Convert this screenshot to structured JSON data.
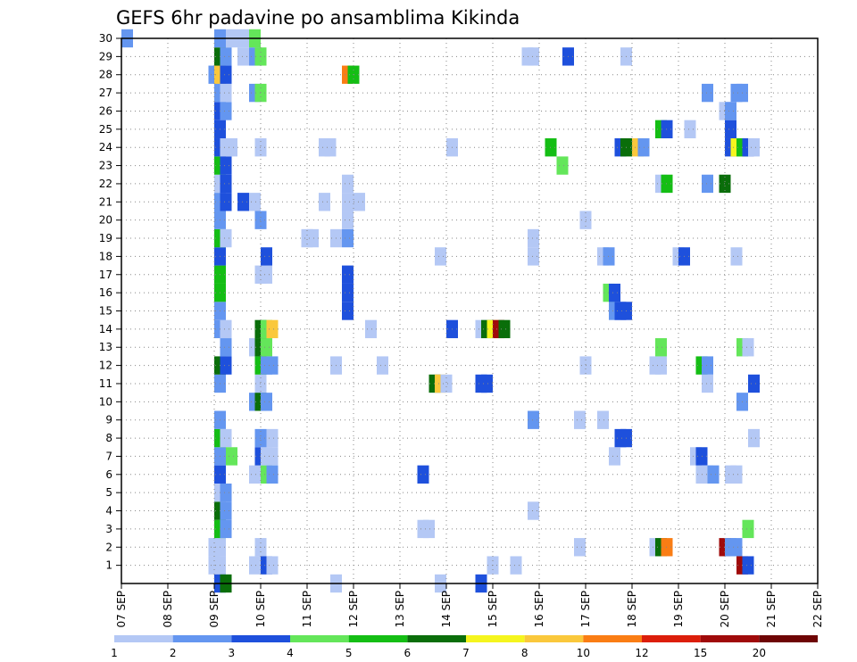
{
  "chart_data": {
    "type": "heatmap",
    "title": "GEFS 6hr padavine po ansamblima Kikinda",
    "xlabel": "",
    "ylabel": "",
    "x_tick_labels": [
      "07 SEP",
      "08 SEP",
      "09 SEP",
      "10 SEP",
      "11 SEP",
      "12 SEP",
      "13 SEP",
      "14 SEP",
      "15 SEP",
      "16 SEP",
      "17 SEP",
      "18 SEP",
      "19 SEP",
      "20 SEP",
      "21 SEP",
      "22 SEP"
    ],
    "xlim": [
      0,
      60
    ],
    "y_tick_labels": [
      "1",
      "2",
      "3",
      "4",
      "5",
      "6",
      "7",
      "8",
      "9",
      "10",
      "11",
      "12",
      "13",
      "14",
      "15",
      "16",
      "17",
      "18",
      "19",
      "20",
      "21",
      "22",
      "23",
      "24",
      "25",
      "26",
      "27",
      "28",
      "29",
      "30"
    ],
    "ylim": [
      0,
      30
    ],
    "grid": true,
    "legend_placement": "bottom",
    "legend": {
      "labels": [
        "1",
        "2",
        "3",
        "4",
        "5",
        "6",
        "7",
        "8",
        "10",
        "12",
        "15",
        "20"
      ],
      "colors": [
        "#b4c8f5",
        "#6496f0",
        "#1e50dc",
        "#64e65a",
        "#14be14",
        "#0a6e0a",
        "#f5f51e",
        "#fac83c",
        "#fa7d14",
        "#dc1e0a",
        "#a00a0a",
        "#6e0505"
      ]
    },
    "cells": [
      {
        "x": 0,
        "y": 30,
        "level": 1
      },
      {
        "x": 7.5,
        "y": 1,
        "level": 0
      },
      {
        "x": 7.5,
        "y": 2,
        "level": 0
      },
      {
        "x": 7.5,
        "y": 28,
        "level": 1
      },
      {
        "x": 8,
        "y": 1,
        "level": 0
      },
      {
        "x": 8,
        "y": 2,
        "level": 0
      },
      {
        "x": 8,
        "y": 3,
        "level": 4
      },
      {
        "x": 8,
        "y": 4,
        "level": 5
      },
      {
        "x": 8,
        "y": 5,
        "level": 0
      },
      {
        "x": 8,
        "y": 6,
        "level": 2
      },
      {
        "x": 8,
        "y": 7,
        "level": 1
      },
      {
        "x": 8,
        "y": 8,
        "level": 4
      },
      {
        "x": 8,
        "y": 9,
        "level": 1
      },
      {
        "x": 8,
        "y": 11,
        "level": 1
      },
      {
        "x": 8,
        "y": 12,
        "level": 5
      },
      {
        "x": 8,
        "y": 14,
        "level": 1
      },
      {
        "x": 8,
        "y": 15,
        "level": 1
      },
      {
        "x": 8,
        "y": 16,
        "level": 4
      },
      {
        "x": 8,
        "y": 17,
        "level": 4
      },
      {
        "x": 8,
        "y": 18,
        "level": 2
      },
      {
        "x": 8,
        "y": 19,
        "level": 4
      },
      {
        "x": 8,
        "y": 20,
        "level": 1
      },
      {
        "x": 8,
        "y": 21,
        "level": 1
      },
      {
        "x": 8,
        "y": 22,
        "level": 0
      },
      {
        "x": 8,
        "y": 23,
        "level": 4
      },
      {
        "x": 8,
        "y": 24,
        "level": 2
      },
      {
        "x": 8,
        "y": 25,
        "level": 2
      },
      {
        "x": 8,
        "y": 26,
        "level": 2
      },
      {
        "x": 8,
        "y": 27,
        "level": 1
      },
      {
        "x": 8,
        "y": 28,
        "level": 7
      },
      {
        "x": 8,
        "y": 29,
        "level": 5
      },
      {
        "x": 8,
        "y": 30,
        "level": 1
      },
      {
        "x": 8,
        "y": 0,
        "level": 2
      },
      {
        "x": 8.5,
        "y": 0,
        "level": 5
      },
      {
        "x": 8.5,
        "y": 3,
        "level": 1
      },
      {
        "x": 8.5,
        "y": 4,
        "level": 1
      },
      {
        "x": 8.5,
        "y": 5,
        "level": 1
      },
      {
        "x": 8.5,
        "y": 8,
        "level": 0
      },
      {
        "x": 8.5,
        "y": 12,
        "level": 2
      },
      {
        "x": 8.5,
        "y": 13,
        "level": 1
      },
      {
        "x": 8.5,
        "y": 14,
        "level": 0
      },
      {
        "x": 8.5,
        "y": 19,
        "level": 0
      },
      {
        "x": 8.5,
        "y": 21,
        "level": 2
      },
      {
        "x": 8.5,
        "y": 22,
        "level": 2
      },
      {
        "x": 8.5,
        "y": 23,
        "level": 2
      },
      {
        "x": 8.5,
        "y": 24,
        "level": 0
      },
      {
        "x": 8.5,
        "y": 26,
        "level": 1
      },
      {
        "x": 8.5,
        "y": 27,
        "level": 0
      },
      {
        "x": 8.5,
        "y": 28,
        "level": 2
      },
      {
        "x": 8.5,
        "y": 29,
        "level": 1
      },
      {
        "x": 9,
        "y": 7,
        "level": 3
      },
      {
        "x": 9,
        "y": 24,
        "level": 0
      },
      {
        "x": 9,
        "y": 30,
        "level": 0
      },
      {
        "x": 10,
        "y": 21,
        "level": 2
      },
      {
        "x": 10,
        "y": 29,
        "level": 0
      },
      {
        "x": 10,
        "y": 30,
        "level": 0
      },
      {
        "x": 11,
        "y": 1,
        "level": 0
      },
      {
        "x": 11,
        "y": 6,
        "level": 0
      },
      {
        "x": 11,
        "y": 10,
        "level": 1
      },
      {
        "x": 11,
        "y": 13,
        "level": 0
      },
      {
        "x": 11,
        "y": 21,
        "level": 0
      },
      {
        "x": 11,
        "y": 27,
        "level": 1
      },
      {
        "x": 11,
        "y": 29,
        "level": 1
      },
      {
        "x": 11,
        "y": 30,
        "level": 3
      },
      {
        "x": 11.5,
        "y": 2,
        "level": 0
      },
      {
        "x": 11.5,
        "y": 7,
        "level": 2
      },
      {
        "x": 11.5,
        "y": 8,
        "level": 1
      },
      {
        "x": 11.5,
        "y": 10,
        "level": 5
      },
      {
        "x": 11.5,
        "y": 11,
        "level": 0
      },
      {
        "x": 11.5,
        "y": 12,
        "level": 4
      },
      {
        "x": 11.5,
        "y": 13,
        "level": 5
      },
      {
        "x": 11.5,
        "y": 14,
        "level": 5
      },
      {
        "x": 11.5,
        "y": 17,
        "level": 0
      },
      {
        "x": 11.5,
        "y": 20,
        "level": 1
      },
      {
        "x": 11.5,
        "y": 24,
        "level": 0
      },
      {
        "x": 11.5,
        "y": 27,
        "level": 3
      },
      {
        "x": 11.5,
        "y": 29,
        "level": 3
      },
      {
        "x": 12,
        "y": 1,
        "level": 2
      },
      {
        "x": 12,
        "y": 6,
        "level": 3
      },
      {
        "x": 12,
        "y": 7,
        "level": 0
      },
      {
        "x": 12,
        "y": 10,
        "level": 1
      },
      {
        "x": 12,
        "y": 12,
        "level": 1
      },
      {
        "x": 12,
        "y": 13,
        "level": 3
      },
      {
        "x": 12,
        "y": 14,
        "level": 3
      },
      {
        "x": 12,
        "y": 17,
        "level": 0
      },
      {
        "x": 12,
        "y": 18,
        "level": 2
      },
      {
        "x": 12.5,
        "y": 1,
        "level": 0
      },
      {
        "x": 12.5,
        "y": 6,
        "level": 1
      },
      {
        "x": 12.5,
        "y": 7,
        "level": 0
      },
      {
        "x": 12.5,
        "y": 8,
        "level": 0
      },
      {
        "x": 12.5,
        "y": 12,
        "level": 1
      },
      {
        "x": 12.5,
        "y": 14,
        "level": 7
      },
      {
        "x": 15.5,
        "y": 19,
        "level": 0
      },
      {
        "x": 16,
        "y": 19,
        "level": 0
      },
      {
        "x": 17,
        "y": 21,
        "level": 0
      },
      {
        "x": 17,
        "y": 24,
        "level": 0
      },
      {
        "x": 17.5,
        "y": 24,
        "level": 0
      },
      {
        "x": 18,
        "y": 19,
        "level": 0
      },
      {
        "x": 18,
        "y": 12,
        "level": 0
      },
      {
        "x": 18,
        "y": 0,
        "level": 0
      },
      {
        "x": 19,
        "y": 15,
        "level": 2
      },
      {
        "x": 19,
        "y": 16,
        "level": 2
      },
      {
        "x": 19,
        "y": 17,
        "level": 2
      },
      {
        "x": 19,
        "y": 19,
        "level": 1
      },
      {
        "x": 19,
        "y": 20,
        "level": 0
      },
      {
        "x": 19,
        "y": 21,
        "level": 0
      },
      {
        "x": 19,
        "y": 22,
        "level": 0
      },
      {
        "x": 19,
        "y": 28,
        "level": 8
      },
      {
        "x": 19.5,
        "y": 28,
        "level": 4
      },
      {
        "x": 20,
        "y": 21,
        "level": 0
      },
      {
        "x": 21,
        "y": 14,
        "level": 0
      },
      {
        "x": 22,
        "y": 12,
        "level": 0
      },
      {
        "x": 25.5,
        "y": 3,
        "level": 0
      },
      {
        "x": 25.5,
        "y": 6,
        "level": 2
      },
      {
        "x": 26,
        "y": 3,
        "level": 0
      },
      {
        "x": 26.5,
        "y": 11,
        "level": 5
      },
      {
        "x": 27,
        "y": 11,
        "level": 7
      },
      {
        "x": 27,
        "y": 18,
        "level": 0
      },
      {
        "x": 27,
        "y": 0,
        "level": 0
      },
      {
        "x": 27.5,
        "y": 11,
        "level": 0
      },
      {
        "x": 28,
        "y": 14,
        "level": 2
      },
      {
        "x": 28,
        "y": 24,
        "level": 0
      },
      {
        "x": 30.5,
        "y": 11,
        "level": 2
      },
      {
        "x": 30.5,
        "y": 0,
        "level": 2
      },
      {
        "x": 30.5,
        "y": 14,
        "level": 0
      },
      {
        "x": 31,
        "y": 11,
        "level": 2
      },
      {
        "x": 31,
        "y": 14,
        "level": 5
      },
      {
        "x": 31.5,
        "y": 1,
        "level": 0
      },
      {
        "x": 31.5,
        "y": 14,
        "level": 6
      },
      {
        "x": 32,
        "y": 14,
        "level": 10
      },
      {
        "x": 32.5,
        "y": 14,
        "level": 5
      },
      {
        "x": 33.5,
        "y": 1,
        "level": 0
      },
      {
        "x": 34.5,
        "y": 29,
        "level": 0
      },
      {
        "x": 35,
        "y": 29,
        "level": 0
      },
      {
        "x": 35,
        "y": 4,
        "level": 0
      },
      {
        "x": 35,
        "y": 9,
        "level": 1
      },
      {
        "x": 35,
        "y": 18,
        "level": 0
      },
      {
        "x": 35,
        "y": 19,
        "level": 0
      },
      {
        "x": 36.5,
        "y": 24,
        "level": 4
      },
      {
        "x": 37.5,
        "y": 23,
        "level": 3
      },
      {
        "x": 38,
        "y": 29,
        "level": 2
      },
      {
        "x": 39,
        "y": 2,
        "level": 0
      },
      {
        "x": 39,
        "y": 9,
        "level": 0
      },
      {
        "x": 39.5,
        "y": 12,
        "level": 0
      },
      {
        "x": 39.5,
        "y": 20,
        "level": 0
      },
      {
        "x": 41,
        "y": 9,
        "level": 0
      },
      {
        "x": 41,
        "y": 18,
        "level": 0
      },
      {
        "x": 41.5,
        "y": 16,
        "level": 3
      },
      {
        "x": 41.5,
        "y": 18,
        "level": 1
      },
      {
        "x": 42,
        "y": 7,
        "level": 0
      },
      {
        "x": 42,
        "y": 15,
        "level": 1
      },
      {
        "x": 42,
        "y": 16,
        "level": 2
      },
      {
        "x": 42.5,
        "y": 8,
        "level": 2
      },
      {
        "x": 42.5,
        "y": 15,
        "level": 2
      },
      {
        "x": 42.5,
        "y": 24,
        "level": 2
      },
      {
        "x": 43,
        "y": 8,
        "level": 2
      },
      {
        "x": 43,
        "y": 15,
        "level": 2
      },
      {
        "x": 43,
        "y": 24,
        "level": 5
      },
      {
        "x": 43,
        "y": 29,
        "level": 0
      },
      {
        "x": 44,
        "y": 24,
        "level": 7
      },
      {
        "x": 44.5,
        "y": 24,
        "level": 1
      },
      {
        "x": 45.5,
        "y": 2,
        "level": 0
      },
      {
        "x": 45.5,
        "y": 12,
        "level": 0
      },
      {
        "x": 46,
        "y": 2,
        "level": 5
      },
      {
        "x": 46,
        "y": 12,
        "level": 0
      },
      {
        "x": 46,
        "y": 13,
        "level": 3
      },
      {
        "x": 46,
        "y": 22,
        "level": 0
      },
      {
        "x": 46,
        "y": 25,
        "level": 4
      },
      {
        "x": 46.5,
        "y": 2,
        "level": 8
      },
      {
        "x": 46.5,
        "y": 22,
        "level": 4
      },
      {
        "x": 46.5,
        "y": 25,
        "level": 2
      },
      {
        "x": 47.5,
        "y": 18,
        "level": 0
      },
      {
        "x": 48,
        "y": 18,
        "level": 2
      },
      {
        "x": 48.5,
        "y": 25,
        "level": 0
      },
      {
        "x": 49,
        "y": 7,
        "level": 0
      },
      {
        "x": 49.5,
        "y": 12,
        "level": 4
      },
      {
        "x": 49.5,
        "y": 6,
        "level": 0
      },
      {
        "x": 49.5,
        "y": 7,
        "level": 2
      },
      {
        "x": 50,
        "y": 11,
        "level": 0
      },
      {
        "x": 50,
        "y": 12,
        "level": 1
      },
      {
        "x": 50,
        "y": 6,
        "level": 0
      },
      {
        "x": 50,
        "y": 22,
        "level": 1
      },
      {
        "x": 50,
        "y": 27,
        "level": 1
      },
      {
        "x": 50.5,
        "y": 6,
        "level": 1
      },
      {
        "x": 51.5,
        "y": 2,
        "level": 10
      },
      {
        "x": 51.5,
        "y": 22,
        "level": 5
      },
      {
        "x": 51.5,
        "y": 26,
        "level": 0
      },
      {
        "x": 52,
        "y": 6,
        "level": 0
      },
      {
        "x": 52,
        "y": 2,
        "level": 1
      },
      {
        "x": 52,
        "y": 24,
        "level": 2
      },
      {
        "x": 52,
        "y": 25,
        "level": 2
      },
      {
        "x": 52,
        "y": 26,
        "level": 1
      },
      {
        "x": 52.5,
        "y": 2,
        "level": 1
      },
      {
        "x": 52.5,
        "y": 6,
        "level": 0
      },
      {
        "x": 52.5,
        "y": 18,
        "level": 0
      },
      {
        "x": 52.5,
        "y": 24,
        "level": 6
      },
      {
        "x": 52.5,
        "y": 27,
        "level": 1
      },
      {
        "x": 53,
        "y": 10,
        "level": 1
      },
      {
        "x": 53,
        "y": 24,
        "level": 4
      },
      {
        "x": 53,
        "y": 13,
        "level": 3
      },
      {
        "x": 53,
        "y": 1,
        "level": 10
      },
      {
        "x": 53,
        "y": 27,
        "level": 1
      },
      {
        "x": 53.5,
        "y": 1,
        "level": 2
      },
      {
        "x": 53.5,
        "y": 13,
        "level": 0
      },
      {
        "x": 53.5,
        "y": 24,
        "level": 2
      },
      {
        "x": 53.5,
        "y": 3,
        "level": 3
      },
      {
        "x": 54,
        "y": 8,
        "level": 0
      },
      {
        "x": 54,
        "y": 11,
        "level": 2
      },
      {
        "x": 54,
        "y": 24,
        "level": 0
      }
    ]
  }
}
